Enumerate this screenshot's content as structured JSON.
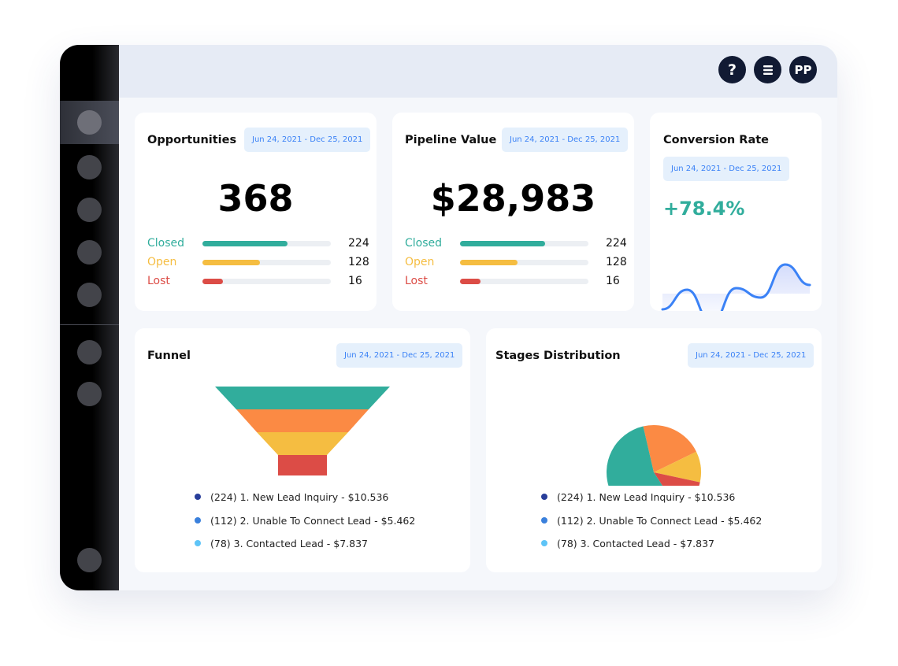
{
  "header": {
    "help_icon": "?",
    "menu_icon": "menu",
    "avatar": "PP"
  },
  "sidebar": {
    "items": [
      "nav-1",
      "nav-2",
      "nav-3",
      "nav-4",
      "nav-5",
      "nav-6",
      "nav-7",
      "nav-8"
    ]
  },
  "date_range": "Jun 24, 2021 -  Dec 25, 2021",
  "opportunities": {
    "title": "Opportunities",
    "date": "Jun 24, 2021 -  Dec 25, 2021",
    "value": "368",
    "rows": [
      {
        "label": "Closed",
        "value": "224",
        "fill": 0.66,
        "color": "#31ad9c"
      },
      {
        "label": "Open",
        "value": "128",
        "fill": 0.45,
        "color": "#f5bd41"
      },
      {
        "label": "Lost",
        "value": "16",
        "fill": 0.16,
        "color": "#dc4c46"
      }
    ]
  },
  "pipeline": {
    "title": "Pipeline Value",
    "date": "Jun 24, 2021 -  Dec 25, 2021",
    "value": "$28,983",
    "rows": [
      {
        "label": "Closed",
        "value": "224",
        "fill": 0.66,
        "color": "#31ad9c"
      },
      {
        "label": "Open",
        "value": "128",
        "fill": 0.45,
        "color": "#f5bd41"
      },
      {
        "label": "Lost",
        "value": "16",
        "fill": 0.16,
        "color": "#dc4c46"
      }
    ]
  },
  "conversion": {
    "title": "Conversion Rate",
    "date": "Jun 24, 2021 -  Dec 25, 2021",
    "value": "+78.4%"
  },
  "funnel": {
    "title": "Funnel",
    "date": "Jun 24, 2021 -  Dec 25, 2021"
  },
  "stages": {
    "title": "Stages Distribution",
    "date": "Jun 24, 2021 -  Dec 25, 2021"
  },
  "legend": [
    {
      "text": "(224) 1. New Lead Inquiry - $10.536",
      "color": "#283e9a"
    },
    {
      "text": "(112) 2. Unable To Connect Lead - $5.462",
      "color": "#3a80dc"
    },
    {
      "text": "(78) 3. Contacted Lead - $7.837",
      "color": "#5ec4f7"
    }
  ],
  "chart_data": [
    {
      "type": "line",
      "title": "Conversion Rate",
      "x": [
        0,
        1,
        2,
        3,
        4,
        5,
        6
      ],
      "values": [
        336,
        311,
        353,
        309,
        321,
        279,
        305
      ],
      "note": "relative sparkline, no axes"
    },
    {
      "type": "funnel",
      "title": "Funnel",
      "values": [
        4,
        3,
        2,
        1
      ],
      "colors": [
        "#31ad9c",
        "#fb8a44",
        "#f5bd41",
        "#dc4c46"
      ]
    },
    {
      "type": "pie",
      "title": "Stages Distribution",
      "values": [
        21.4,
        10.6,
        12.5,
        55.5
      ],
      "colors": [
        "#fb8a44",
        "#f5bd41",
        "#dc4c46",
        "#31ad9c"
      ]
    }
  ]
}
